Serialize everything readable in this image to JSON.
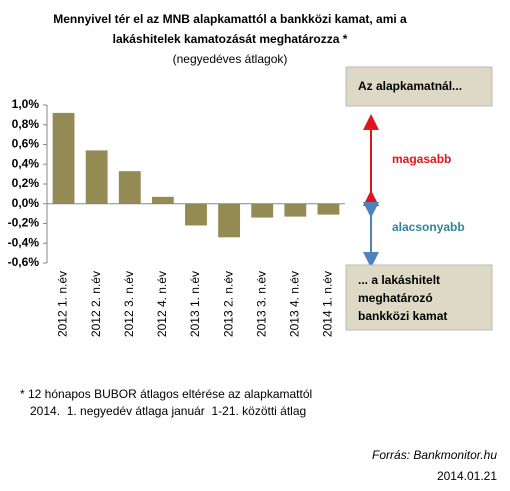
{
  "chart_data": {
    "type": "bar",
    "title": [
      "Mennyivel tér el az MNB alapkamattól a bankközi kamat, ami a",
      "lakáshitelek kamatozását meghatározza *"
    ],
    "subtitle": "(negyedéves átlagok)",
    "categories": [
      "2012 1. n.év",
      "2012 2. n.év",
      "2012 3. n.év",
      "2012 4. n.év",
      "2013 1. n.év",
      "2013 2. n.év",
      "2013 3. n.év",
      "2013 4. n.év",
      "2014 1. n.év"
    ],
    "values": [
      0.92,
      0.54,
      0.33,
      0.07,
      -0.22,
      -0.34,
      -0.14,
      -0.13,
      -0.11
    ],
    "color": "#948a54",
    "ylim": [
      -0.6,
      1.0
    ],
    "yticks": [
      {
        "value": -0.6,
        "label": "-0,6%"
      },
      {
        "value": -0.4,
        "label": "-0,4%"
      },
      {
        "value": -0.2,
        "label": "-0,2%"
      },
      {
        "value": 0,
        "label": "0,0%"
      },
      {
        "value": 0.2,
        "label": "0,2%"
      },
      {
        "value": 0.4,
        "label": "0,4%"
      },
      {
        "value": 0.6,
        "label": "0,6%"
      },
      {
        "value": 0.8,
        "label": "0,8%"
      },
      {
        "value": 1.0,
        "label": "1,0%"
      }
    ],
    "annotations": {
      "box_top": "Az alapkamatnál...",
      "higher": "magasabb",
      "lower": "alacsonyabb",
      "box_bottom": [
        "... a lakáshitelt",
        "meghatározó",
        "bankközi kamat"
      ]
    },
    "footnotes": [
      "* 12 hónapos BUBOR átlagos eltérése az alapkamattól",
      "2014.  1. negyedév átlaga január  1-21. közötti átlag"
    ],
    "source": "Forrás: Bankmonitor.hu",
    "date": "2014.01.21"
  }
}
